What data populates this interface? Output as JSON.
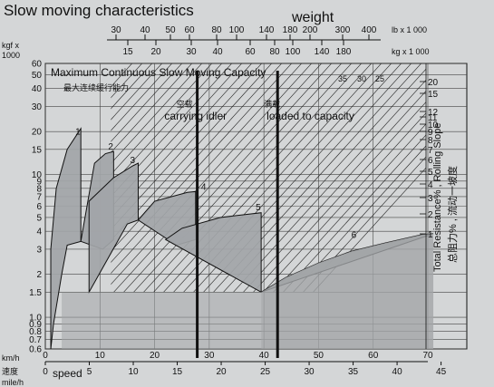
{
  "header": {
    "title": "Slow moving characteristics",
    "weight_label": "weight",
    "speed_label": "speed"
  },
  "chart_data": {
    "type": "area",
    "title_en": "Maximum Continuous Slow Moving Capacity",
    "title_cn": "最大连续缓行能力",
    "y_axis": {
      "unit_top": "kgf x 1000",
      "scale": "log",
      "range": [
        0.6,
        60
      ],
      "ticks": [
        0.6,
        0.7,
        0.8,
        0.9,
        1.0,
        1.5,
        2,
        3,
        4,
        5,
        6,
        7,
        8,
        9,
        10,
        15,
        20,
        30,
        40,
        50,
        60
      ]
    },
    "x_axis_kmh": {
      "label": "km/h",
      "range": [
        0,
        70
      ],
      "ticks": [
        0,
        10,
        20,
        30,
        40,
        50,
        60,
        70
      ]
    },
    "x_axis_mph": {
      "label_cn": "速度",
      "label": "mile/h",
      "ticks": [
        0,
        5,
        10,
        15,
        20,
        25,
        30,
        35,
        40,
        45
      ]
    },
    "weight_axis_lb": {
      "label": "lb x 1 000",
      "ticks": [
        30,
        40,
        50,
        60,
        80,
        100,
        140,
        180,
        200,
        300,
        400
      ]
    },
    "weight_axis_kg": {
      "label": "kg x 1 000",
      "ticks": [
        15,
        20,
        30,
        40,
        60,
        80,
        100,
        140,
        180
      ]
    },
    "right_axis": {
      "label_en": "Total Resistance% , Rolling Slope",
      "label_cn": "总阻力% , 流动一坡度",
      "ticks": [
        20,
        15,
        12,
        11,
        10,
        9,
        8,
        7,
        6,
        5,
        4,
        3,
        2,
        1
      ],
      "top_values": [
        35,
        30,
        25
      ]
    },
    "annotations": [
      {
        "cn": "空载",
        "en": "carrying idler",
        "weight_lb": 80
      },
      {
        "cn": "满载",
        "en": "loaded to capacity",
        "weight_lb": 180
      }
    ],
    "gears": [
      {
        "name": "1",
        "points": [
          [
            1,
            0.6
          ],
          [
            1,
            3.0
          ],
          [
            2,
            8.0
          ],
          [
            4,
            15.0
          ],
          [
            6.5,
            21.0
          ],
          [
            6.5,
            3.4
          ],
          [
            4,
            3.2
          ],
          [
            3,
            2.0
          ],
          [
            1.5,
            0.9
          ]
        ]
      },
      {
        "name": "2",
        "points": [
          [
            6.5,
            3.4
          ],
          [
            9,
            12.0
          ],
          [
            11,
            14.0
          ],
          [
            12.5,
            14.5
          ],
          [
            12.5,
            3.5
          ],
          [
            10.5,
            3.0
          ]
        ]
      },
      {
        "name": "3",
        "points": [
          [
            8,
            1.5
          ],
          [
            8,
            6.5
          ],
          [
            12.5,
            9.5
          ],
          [
            16,
            11.5
          ],
          [
            17,
            12.0
          ],
          [
            17,
            4.8
          ],
          [
            15,
            4.5
          ]
        ]
      },
      {
        "name": "4",
        "points": [
          [
            17,
            4.8
          ],
          [
            20,
            6.5
          ],
          [
            26,
            7.5
          ],
          [
            27.5,
            7.6
          ],
          [
            27.5,
            3.5
          ],
          [
            24,
            3.2
          ]
        ]
      },
      {
        "name": "5",
        "points": [
          [
            22,
            3.5
          ],
          [
            25,
            4.2
          ],
          [
            32,
            5.0
          ],
          [
            39.5,
            5.4
          ],
          [
            39.5,
            1.5
          ]
        ]
      },
      {
        "name": "6",
        "points": [
          [
            39.5,
            1.5
          ],
          [
            44,
            1.9
          ],
          [
            50,
            2.4
          ],
          [
            56,
            2.9
          ],
          [
            62,
            3.3
          ],
          [
            69,
            3.8
          ],
          [
            71,
            3.85
          ]
        ]
      }
    ]
  },
  "colors": {
    "background": "#d4d6d7",
    "plot_background": "#d4d6d7",
    "fill": "#a2a5a8",
    "line": "#111111"
  }
}
